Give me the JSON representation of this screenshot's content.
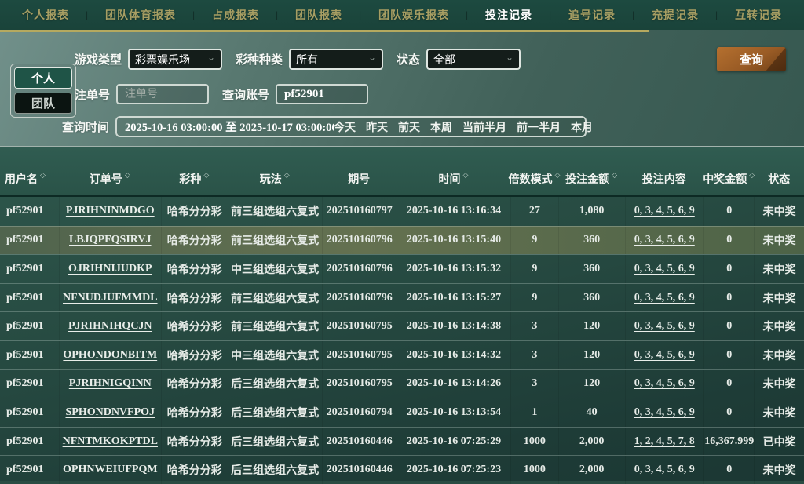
{
  "nav": {
    "tabs": [
      {
        "label": "个人报表",
        "active": false
      },
      {
        "label": "团队体育报表",
        "active": false
      },
      {
        "label": "占成报表",
        "active": false
      },
      {
        "label": "团队报表",
        "active": false
      },
      {
        "label": "团队娱乐报表",
        "active": false
      },
      {
        "label": "投注记录",
        "active": true
      },
      {
        "label": "追号记录",
        "active": false
      },
      {
        "label": "充提记录",
        "active": false
      },
      {
        "label": "互转记录",
        "active": false
      }
    ]
  },
  "filters": {
    "scope": {
      "personal": "个人",
      "team": "团队"
    },
    "game_type": {
      "label": "游戏类型",
      "value": "彩票娱乐场"
    },
    "lottery_type": {
      "label": "彩种种类",
      "value": "所有"
    },
    "status": {
      "label": "状态",
      "value": "全部"
    },
    "order_no": {
      "label": "注单号",
      "placeholder": "注单号"
    },
    "account": {
      "label": "查询账号",
      "value": "pf52901"
    },
    "time": {
      "label": "查询时间",
      "value": "2025-10-16 03:00:00 至 2025-10-17 03:00:00",
      "shortcuts": [
        "今天",
        "昨天",
        "前天",
        "本周",
        "当前半月",
        "前一半月",
        "本月"
      ]
    },
    "search_label": "查询"
  },
  "table": {
    "columns": [
      {
        "key": "user",
        "label": "用户名",
        "sortable": true
      },
      {
        "key": "order",
        "label": "订单号",
        "sortable": true
      },
      {
        "key": "lottery",
        "label": "彩种",
        "sortable": true
      },
      {
        "key": "play",
        "label": "玩法",
        "sortable": true
      },
      {
        "key": "issue",
        "label": "期号",
        "sortable": false
      },
      {
        "key": "time",
        "label": "时间",
        "sortable": true
      },
      {
        "key": "mult",
        "label": "倍数模式",
        "sortable": true
      },
      {
        "key": "amount",
        "label": "投注金额",
        "sortable": true
      },
      {
        "key": "content",
        "label": "投注内容",
        "sortable": false
      },
      {
        "key": "win",
        "label": "中奖金额",
        "sortable": true
      },
      {
        "key": "status",
        "label": "状态",
        "sortable": false
      }
    ],
    "rows": [
      {
        "user": "pf52901",
        "order": "PJRIHNINMDGO",
        "lottery": "哈希分分彩",
        "play": "前三组选组六复式",
        "issue": "202510160797",
        "time": "2025-10-16 13:16:34",
        "mult": "27",
        "amount": "1,080",
        "content": "0, 3, 4, 5, 6, 9",
        "win": "0",
        "status": "未中奖",
        "highlighted": false
      },
      {
        "user": "pf52901",
        "order": "LBJQPFQSIRVJ",
        "lottery": "哈希分分彩",
        "play": "前三组选组六复式",
        "issue": "202510160796",
        "time": "2025-10-16 13:15:40",
        "mult": "9",
        "amount": "360",
        "content": "0, 3, 4, 5, 6, 9",
        "win": "0",
        "status": "未中奖",
        "highlighted": true
      },
      {
        "user": "pf52901",
        "order": "OJRIHNIJUDKP",
        "lottery": "哈希分分彩",
        "play": "中三组选组六复式",
        "issue": "202510160796",
        "time": "2025-10-16 13:15:32",
        "mult": "9",
        "amount": "360",
        "content": "0, 3, 4, 5, 6, 9",
        "win": "0",
        "status": "未中奖",
        "highlighted": false
      },
      {
        "user": "pf52901",
        "order": "NFNUDJUFMMDL",
        "lottery": "哈希分分彩",
        "play": "前三组选组六复式",
        "issue": "202510160796",
        "time": "2025-10-16 13:15:27",
        "mult": "9",
        "amount": "360",
        "content": "0, 3, 4, 5, 6, 9",
        "win": "0",
        "status": "未中奖",
        "highlighted": false
      },
      {
        "user": "pf52901",
        "order": "PJRIHNIHQCJN",
        "lottery": "哈希分分彩",
        "play": "前三组选组六复式",
        "issue": "202510160795",
        "time": "2025-10-16 13:14:38",
        "mult": "3",
        "amount": "120",
        "content": "0, 3, 4, 5, 6, 9",
        "win": "0",
        "status": "未中奖",
        "highlighted": false
      },
      {
        "user": "pf52901",
        "order": "OPHONDONBITM",
        "lottery": "哈希分分彩",
        "play": "中三组选组六复式",
        "issue": "202510160795",
        "time": "2025-10-16 13:14:32",
        "mult": "3",
        "amount": "120",
        "content": "0, 3, 4, 5, 6, 9",
        "win": "0",
        "status": "未中奖",
        "highlighted": false
      },
      {
        "user": "pf52901",
        "order": "PJRIHNIGQINN",
        "lottery": "哈希分分彩",
        "play": "后三组选组六复式",
        "issue": "202510160795",
        "time": "2025-10-16 13:14:26",
        "mult": "3",
        "amount": "120",
        "content": "0, 3, 4, 5, 6, 9",
        "win": "0",
        "status": "未中奖",
        "highlighted": false
      },
      {
        "user": "pf52901",
        "order": "SPHONDNVFPOJ",
        "lottery": "哈希分分彩",
        "play": "后三组选组六复式",
        "issue": "202510160794",
        "time": "2025-10-16 13:13:54",
        "mult": "1",
        "amount": "40",
        "content": "0, 3, 4, 5, 6, 9",
        "win": "0",
        "status": "未中奖",
        "highlighted": false
      },
      {
        "user": "pf52901",
        "order": "NFNTMKOKPTDL",
        "lottery": "哈希分分彩",
        "play": "后三组选组六复式",
        "issue": "202510160446",
        "time": "2025-10-16 07:25:29",
        "mult": "1000",
        "amount": "2,000",
        "content": "1, 2, 4, 5, 7, 8",
        "win": "16,367.999",
        "status": "已中奖",
        "highlighted": false
      },
      {
        "user": "pf52901",
        "order": "OPHNWEIUFPQM",
        "lottery": "哈希分分彩",
        "play": "后三组选组六复式",
        "issue": "202510160446",
        "time": "2025-10-16 07:25:23",
        "mult": "1000",
        "amount": "2,000",
        "content": "0, 3, 4, 5, 6, 9",
        "win": "0",
        "status": "未中奖",
        "highlighted": false
      }
    ]
  },
  "colors": {
    "nav_bg": "#1b453c",
    "nav_tab": "#a79e63",
    "nav_tab_active": "#ffffff",
    "gold_line": "#b5a95f",
    "filter_bg_light": "#71908a",
    "filter_bg_dark": "#365850",
    "table_bg_top": "#2e574c",
    "table_bg_bottom": "#1b3733",
    "row_highlight": "#5b6b50",
    "button_orange": "#a96931",
    "scope_active_green": "#1f5447"
  }
}
